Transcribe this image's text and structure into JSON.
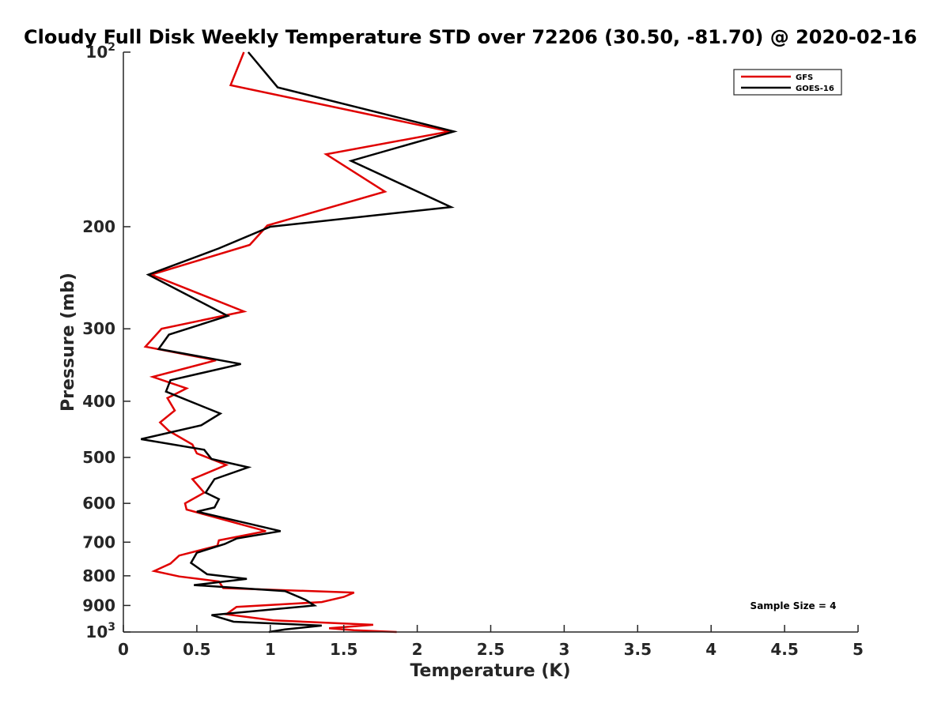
{
  "chart_data": {
    "type": "line",
    "title": "Cloudy Full Disk Weekly Temperature STD over 72206 (30.50, -81.70) @ 2020-02-16",
    "xlabel": "Temperature (K)",
    "ylabel": "Pressure (mb)",
    "xlim": [
      0,
      5
    ],
    "ylim": [
      100,
      1000
    ],
    "yscale": "log",
    "yreversed": true,
    "grid": false,
    "legend_position": "top-right",
    "xticks": [
      "0",
      "0.5",
      "1",
      "1.5",
      "2",
      "2.5",
      "3",
      "3.5",
      "4",
      "4.5",
      "5"
    ],
    "yticks": [
      {
        "value": 100,
        "base": "10",
        "exp": "2"
      },
      {
        "value": 200,
        "label": "200"
      },
      {
        "value": 300,
        "label": "300"
      },
      {
        "value": 400,
        "label": "400"
      },
      {
        "value": 500,
        "label": "500"
      },
      {
        "value": 600,
        "label": "600"
      },
      {
        "value": 700,
        "label": "700"
      },
      {
        "value": 800,
        "label": "800"
      },
      {
        "value": 900,
        "label": "900"
      },
      {
        "value": 1000,
        "base": "10",
        "exp": "3"
      }
    ],
    "annotation": "Sample Size = 4",
    "series": [
      {
        "name": "GFS",
        "color": "#e00000",
        "points": [
          [
            0.82,
            100
          ],
          [
            0.73,
            114
          ],
          [
            2.22,
            137
          ],
          [
            1.38,
            150
          ],
          [
            1.78,
            174
          ],
          [
            0.98,
            199
          ],
          [
            0.86,
            215
          ],
          [
            0.19,
            242
          ],
          [
            0.82,
            280
          ],
          [
            0.26,
            300
          ],
          [
            0.15,
            322
          ],
          [
            0.63,
            340
          ],
          [
            0.2,
            363
          ],
          [
            0.43,
            380
          ],
          [
            0.3,
            395
          ],
          [
            0.35,
            415
          ],
          [
            0.25,
            435
          ],
          [
            0.31,
            450
          ],
          [
            0.47,
            475
          ],
          [
            0.5,
            492
          ],
          [
            0.7,
            515
          ],
          [
            0.47,
            545
          ],
          [
            0.55,
            575
          ],
          [
            0.42,
            600
          ],
          [
            0.43,
            615
          ],
          [
            0.7,
            642
          ],
          [
            0.97,
            670
          ],
          [
            0.65,
            695
          ],
          [
            0.64,
            710
          ],
          [
            0.38,
            738
          ],
          [
            0.32,
            762
          ],
          [
            0.21,
            785
          ],
          [
            0.38,
            802
          ],
          [
            0.65,
            818
          ],
          [
            0.68,
            840
          ],
          [
            1.57,
            855
          ],
          [
            1.5,
            870
          ],
          [
            1.35,
            888
          ],
          [
            0.77,
            905
          ],
          [
            0.7,
            932
          ],
          [
            1.02,
            955
          ],
          [
            1.7,
            972
          ],
          [
            1.4,
            985
          ],
          [
            1.57,
            993
          ],
          [
            1.86,
            1000
          ]
        ]
      },
      {
        "name": "GOES-16",
        "color": "#000000",
        "points": [
          [
            0.85,
            100
          ],
          [
            1.05,
            115
          ],
          [
            2.25,
            137
          ],
          [
            1.55,
            154
          ],
          [
            2.23,
            185
          ],
          [
            1.0,
            200
          ],
          [
            0.65,
            218
          ],
          [
            0.17,
            242
          ],
          [
            0.71,
            285
          ],
          [
            0.31,
            307
          ],
          [
            0.24,
            325
          ],
          [
            0.8,
            345
          ],
          [
            0.32,
            368
          ],
          [
            0.29,
            385
          ],
          [
            0.66,
            420
          ],
          [
            0.53,
            440
          ],
          [
            0.12,
            465
          ],
          [
            0.55,
            485
          ],
          [
            0.6,
            503
          ],
          [
            0.85,
            520
          ],
          [
            0.62,
            545
          ],
          [
            0.56,
            575
          ],
          [
            0.65,
            590
          ],
          [
            0.62,
            610
          ],
          [
            0.5,
            620
          ],
          [
            0.85,
            650
          ],
          [
            1.07,
            670
          ],
          [
            0.77,
            690
          ],
          [
            0.69,
            705
          ],
          [
            0.5,
            730
          ],
          [
            0.46,
            760
          ],
          [
            0.57,
            795
          ],
          [
            0.84,
            810
          ],
          [
            0.48,
            830
          ],
          [
            1.1,
            850
          ],
          [
            1.24,
            880
          ],
          [
            1.3,
            900
          ],
          [
            0.6,
            935
          ],
          [
            0.75,
            960
          ],
          [
            1.35,
            975
          ],
          [
            1.1,
            990
          ],
          [
            0.99,
            1000
          ]
        ]
      }
    ]
  }
}
